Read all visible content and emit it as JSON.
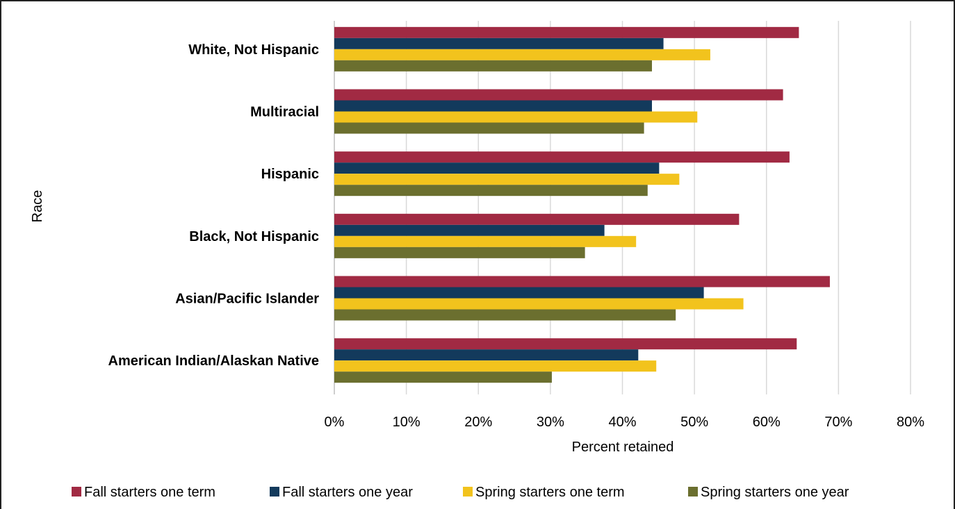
{
  "chart_data": {
    "type": "bar",
    "orientation": "horizontal",
    "categories": [
      "White, Not Hispanic",
      "Multiracial",
      "Hispanic",
      "Black, Not Hispanic",
      "Asian/Pacific Islander",
      "American Indian/Alaskan Native"
    ],
    "series": [
      {
        "name": "Fall starters one term",
        "color": "#a12a43",
        "values": [
          64.5,
          62.3,
          63.2,
          56.2,
          68.8,
          64.2
        ]
      },
      {
        "name": "Fall starters one year",
        "color": "#133a5c",
        "values": [
          45.7,
          44.1,
          45.1,
          37.5,
          51.3,
          42.2
        ]
      },
      {
        "name": "Spring starters one term",
        "color": "#f2c31d",
        "values": [
          52.2,
          50.4,
          47.9,
          41.9,
          56.8,
          44.7
        ]
      },
      {
        "name": "Spring starters one year",
        "color": "#6b6f2f",
        "values": [
          44.1,
          43.0,
          43.5,
          34.8,
          47.4,
          30.2
        ]
      }
    ],
    "x_ticks": [
      "0%",
      "10%",
      "20%",
      "30%",
      "40%",
      "50%",
      "60%",
      "70%",
      "80%"
    ],
    "xlabel": "Percent retained",
    "ylabel": "Race",
    "xlim": [
      0,
      80
    ],
    "grid": "vertical",
    "legend_position": "bottom"
  }
}
